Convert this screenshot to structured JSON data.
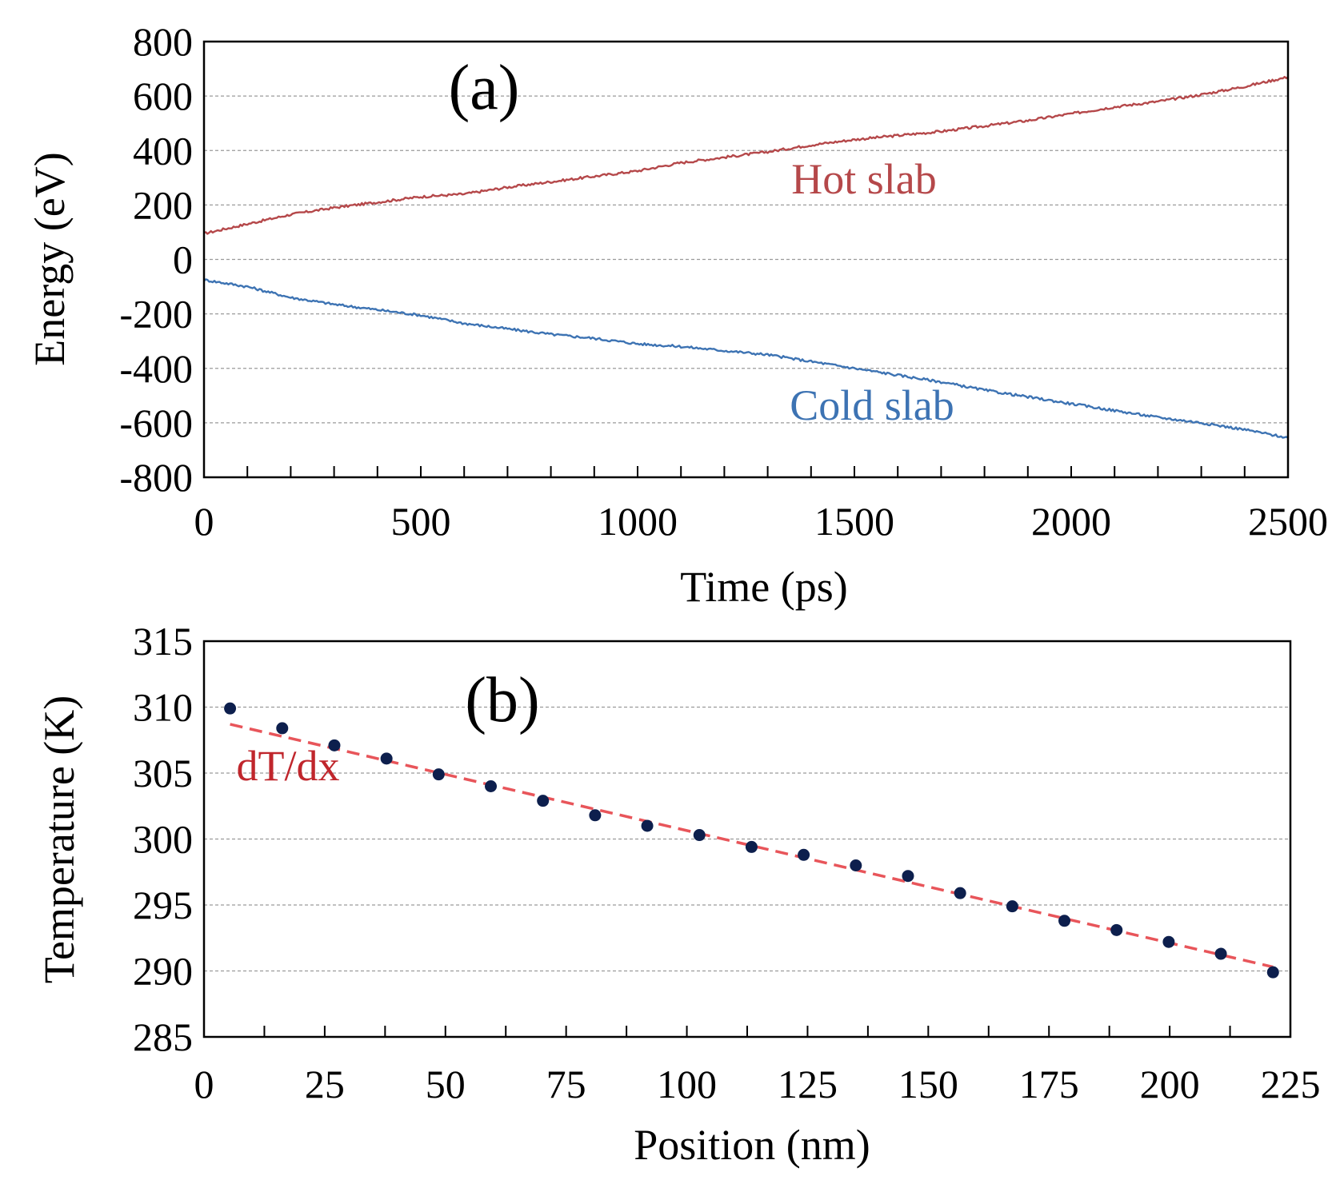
{
  "chart_data": [
    {
      "type": "line",
      "panel_label": "(a)",
      "xlabel": "Time (ps)",
      "ylabel": "Energy (eV)",
      "xlim": [
        0,
        2500
      ],
      "ylim": [
        -800,
        800
      ],
      "xticks": [
        0,
        500,
        1000,
        1500,
        2000,
        2500
      ],
      "yticks": [
        -800,
        -600,
        -400,
        -200,
        0,
        200,
        400,
        600,
        800
      ],
      "xtick_labels": [
        "0",
        "500",
        "1000",
        "1500",
        "2000",
        "2500"
      ],
      "ytick_labels": [
        "-800",
        "-600",
        "-400",
        "-200",
        "0",
        "200",
        "400",
        "600",
        "800"
      ],
      "grid": "horizontal dashed",
      "series": [
        {
          "name": "Hot slab",
          "color": "#b5484a",
          "x": [
            0,
            100,
            200,
            300,
            400,
            500,
            600,
            700,
            800,
            900,
            1000,
            1100,
            1200,
            1300,
            1400,
            1500,
            1600,
            1700,
            1800,
            1900,
            2000,
            2100,
            2200,
            2300,
            2400,
            2500
          ],
          "y": [
            95,
            130,
            165,
            190,
            210,
            230,
            240,
            265,
            285,
            305,
            325,
            355,
            375,
            395,
            420,
            440,
            455,
            470,
            490,
            510,
            535,
            560,
            580,
            605,
            635,
            670
          ]
        },
        {
          "name": "Cold slab",
          "color": "#3d73b3",
          "x": [
            0,
            100,
            200,
            300,
            400,
            500,
            600,
            700,
            800,
            900,
            1000,
            1100,
            1200,
            1300,
            1400,
            1500,
            1600,
            1700,
            1800,
            1900,
            2000,
            2100,
            2200,
            2300,
            2400,
            2500
          ],
          "y": [
            -75,
            -100,
            -140,
            -165,
            -185,
            -205,
            -235,
            -255,
            -275,
            -290,
            -310,
            -320,
            -335,
            -350,
            -375,
            -400,
            -425,
            -450,
            -480,
            -505,
            -530,
            -555,
            -580,
            -600,
            -625,
            -655
          ]
        }
      ]
    },
    {
      "type": "scatter",
      "panel_label": "(b)",
      "xlabel": "Position (nm)",
      "ylabel": "Temperature (K)",
      "xlim": [
        0,
        225
      ],
      "ylim": [
        285,
        315
      ],
      "xticks": [
        0,
        25,
        50,
        75,
        100,
        125,
        150,
        175,
        200,
        225
      ],
      "yticks": [
        285,
        290,
        295,
        300,
        305,
        310,
        315
      ],
      "xtick_labels": [
        "0",
        "25",
        "50",
        "75",
        "100",
        "125",
        "150",
        "175",
        "200",
        "225"
      ],
      "ytick_labels": [
        "285",
        "290",
        "295",
        "300",
        "305",
        "310",
        "315"
      ],
      "grid": "horizontal dashed",
      "series": [
        {
          "name": "Temperature",
          "color": "#0d1f4d",
          "x": [
            5.4,
            16.2,
            27.0,
            37.8,
            48.6,
            59.4,
            70.2,
            81.0,
            91.8,
            102.6,
            113.4,
            124.2,
            135.0,
            145.8,
            156.6,
            167.4,
            178.2,
            189.0,
            199.8,
            210.6,
            221.4
          ],
          "y": [
            309.9,
            308.4,
            307.1,
            306.1,
            304.9,
            304.0,
            302.9,
            301.8,
            301.0,
            300.3,
            299.4,
            298.8,
            298.0,
            297.2,
            295.9,
            294.9,
            293.8,
            293.1,
            292.2,
            291.3,
            289.9
          ]
        }
      ],
      "fit": {
        "label": "dT/dx",
        "color": "#e8555a",
        "x": [
          5.4,
          221.4
        ],
        "y": [
          308.7,
          290.3
        ]
      }
    }
  ]
}
